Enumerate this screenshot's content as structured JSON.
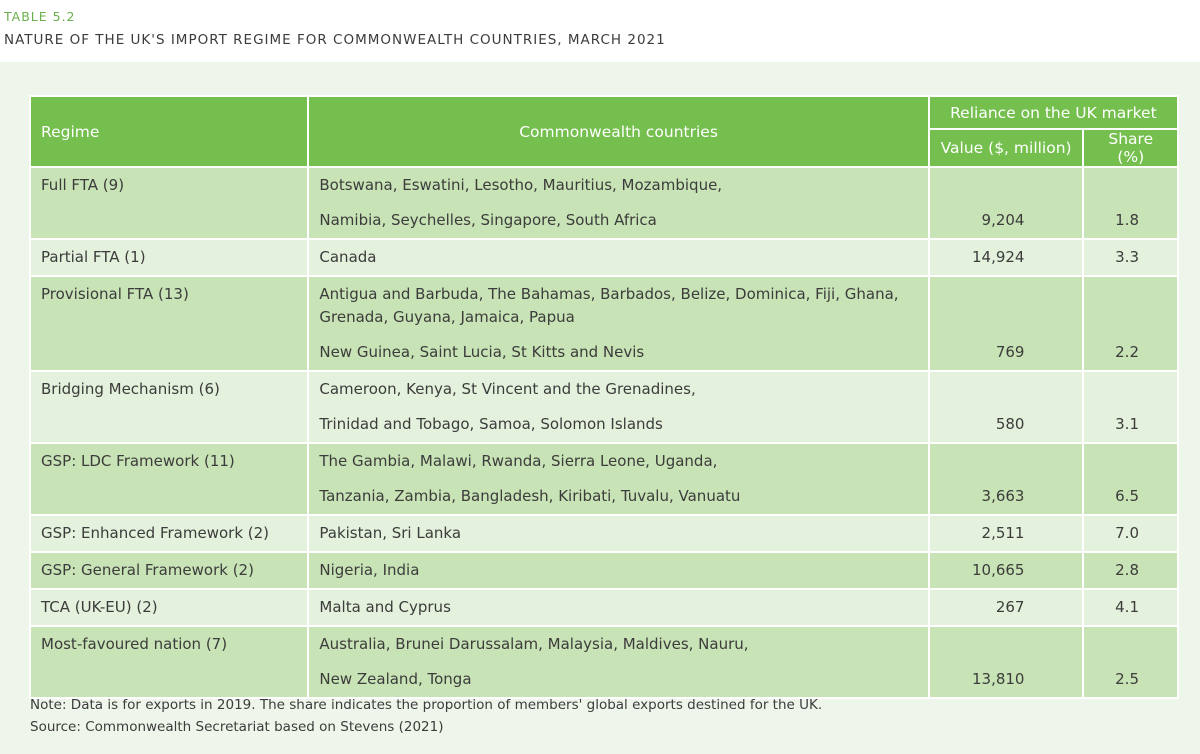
{
  "header": {
    "label": "TABLE 5.2",
    "title": "NATURE OF THE UK'S IMPORT REGIME FOR COMMONWEALTH COUNTRIES, MARCH 2021"
  },
  "table": {
    "columns": [
      "Regime",
      "Commonwealth countries",
      "Value ($, million)",
      "Share (%)"
    ],
    "group_header": "Reliance on the UK market",
    "rows": [
      {
        "regime": "Full FTA (9)",
        "countries": [
          "Botswana, Eswatini, Lesotho, Mauritius, Mozambique,",
          "Namibia, Seychelles, Singapore, South Africa"
        ],
        "value": "9,204",
        "share": "1.8"
      },
      {
        "regime": "Partial FTA (1)",
        "countries": [
          "Canada"
        ],
        "value": "14,924",
        "share": "3.3"
      },
      {
        "regime": "Provisional FTA (13)",
        "countries": [
          "Antigua and Barbuda, The Bahamas, Barbados, Belize, Dominica, Fiji, Ghana, Grenada, Guyana, Jamaica, Papua",
          "New Guinea, Saint Lucia, St Kitts and Nevis"
        ],
        "value": "769",
        "share": "2.2"
      },
      {
        "regime": "Bridging Mechanism (6)",
        "countries": [
          "Cameroon, Kenya, St Vincent and the Grenadines,",
          "Trinidad and Tobago, Samoa, Solomon Islands"
        ],
        "value": "580",
        "share": "3.1"
      },
      {
        "regime": "GSP: LDC Framework (11)",
        "countries": [
          "The Gambia, Malawi, Rwanda, Sierra Leone, Uganda,",
          "Tanzania, Zambia, Bangladesh, Kiribati, Tuvalu, Vanuatu"
        ],
        "value": "3,663",
        "share": "6.5"
      },
      {
        "regime": "GSP: Enhanced Framework (2)",
        "countries": [
          "Pakistan, Sri Lanka"
        ],
        "value": "2,511",
        "share": "7.0"
      },
      {
        "regime": "GSP: General Framework (2)",
        "countries": [
          "Nigeria, India"
        ],
        "value": "10,665",
        "share": "2.8"
      },
      {
        "regime": "TCA (UK-EU) (2)",
        "countries": [
          "Malta and Cyprus"
        ],
        "value": "267",
        "share": "4.1"
      },
      {
        "regime": "Most-favoured nation (7)",
        "countries": [
          "Australia, Brunei Darussalam, Malaysia, Maldives, Nauru,",
          "New Zealand, Tonga"
        ],
        "value": "13,810",
        "share": "2.5"
      }
    ]
  },
  "footer": {
    "note": "Note: Data is for exports in 2019. The share indicates the proportion of members' global exports destined for the UK.",
    "source": "Source: Commonwealth Secretariat based on Stevens (2021)"
  }
}
